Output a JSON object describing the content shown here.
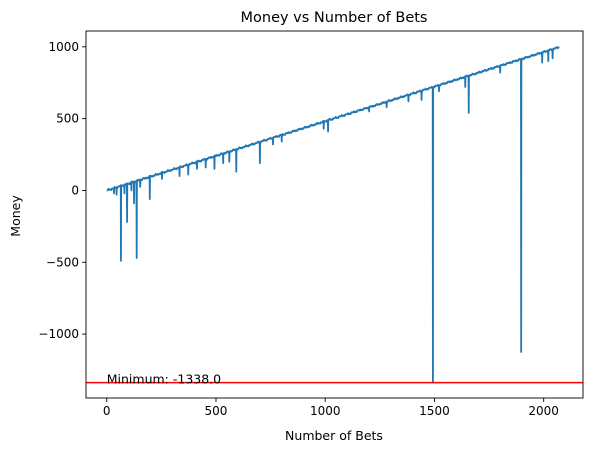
{
  "chart_data": {
    "type": "line",
    "title": "Money vs Number of Bets",
    "xlabel": "Number of Bets",
    "ylabel": "Money",
    "xlim": [
      -95,
      2180
    ],
    "ylim": [
      -1445,
      1110
    ],
    "x_ticks": [
      0,
      500,
      1000,
      1500,
      2000
    ],
    "x_tick_labels": [
      "0",
      "500",
      "1000",
      "1500",
      "2000"
    ],
    "y_ticks": [
      -1000,
      -500,
      0,
      500,
      1000
    ],
    "y_tick_labels": [
      "−1000",
      "−500",
      "0",
      "500",
      "1000"
    ],
    "grid": false,
    "legend": "none",
    "series_color": "#1f77b4",
    "trend": {
      "x": [
        0,
        2075
      ],
      "y": [
        0,
        1000
      ]
    },
    "dips": [
      {
        "x": 30,
        "y": -20
      },
      {
        "x": 45,
        "y": -30
      },
      {
        "x": 65,
        "y": -490
      },
      {
        "x": 80,
        "y": -20
      },
      {
        "x": 93,
        "y": -220
      },
      {
        "x": 110,
        "y": 0
      },
      {
        "x": 122,
        "y": -90
      },
      {
        "x": 135,
        "y": -470
      },
      {
        "x": 150,
        "y": 25
      },
      {
        "x": 195,
        "y": -60
      },
      {
        "x": 250,
        "y": 80
      },
      {
        "x": 330,
        "y": 100
      },
      {
        "x": 370,
        "y": 110
      },
      {
        "x": 410,
        "y": 150
      },
      {
        "x": 450,
        "y": 160
      },
      {
        "x": 490,
        "y": 150
      },
      {
        "x": 530,
        "y": 190
      },
      {
        "x": 560,
        "y": 200
      },
      {
        "x": 590,
        "y": 130
      },
      {
        "x": 700,
        "y": 190
      },
      {
        "x": 760,
        "y": 320
      },
      {
        "x": 800,
        "y": 340
      },
      {
        "x": 990,
        "y": 430
      },
      {
        "x": 1010,
        "y": 410
      },
      {
        "x": 1200,
        "y": 550
      },
      {
        "x": 1280,
        "y": 580
      },
      {
        "x": 1380,
        "y": 620
      },
      {
        "x": 1440,
        "y": 630
      },
      {
        "x": 1490,
        "y": -1338
      },
      {
        "x": 1520,
        "y": 690
      },
      {
        "x": 1640,
        "y": 720
      },
      {
        "x": 1655,
        "y": 540
      },
      {
        "x": 1800,
        "y": 820
      },
      {
        "x": 1895,
        "y": -1125
      },
      {
        "x": 1990,
        "y": 890
      },
      {
        "x": 2020,
        "y": 900
      },
      {
        "x": 2040,
        "y": 920
      }
    ],
    "minimum_line": {
      "y": -1338,
      "color": "#ff0000"
    },
    "annotation": {
      "text": "Minimum: -1338.0",
      "x": 0,
      "y": -1338
    }
  }
}
